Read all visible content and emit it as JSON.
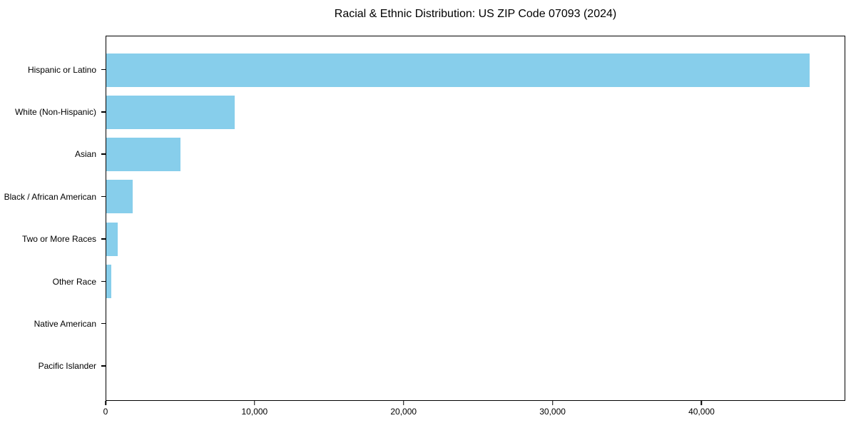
{
  "chart_data": {
    "type": "bar",
    "orientation": "horizontal",
    "title": "Racial & Ethnic Distribution: US ZIP Code 07093 (2024)",
    "categories": [
      "Hispanic or Latino",
      "White (Non-Hispanic)",
      "Asian",
      "Black / African American",
      "Two or More Races",
      "Other Race",
      "Native American",
      "Pacific Islander"
    ],
    "values": [
      47290,
      8620,
      4980,
      1770,
      770,
      340,
      0,
      0
    ],
    "xlabel": "",
    "ylabel": "",
    "xlim": [
      0,
      49650
    ],
    "x_ticks": [
      0,
      10000,
      20000,
      30000,
      40000
    ],
    "x_tick_labels": [
      "0",
      "10,000",
      "20,000",
      "30,000",
      "40,000"
    ],
    "bar_color": "#87CEEB",
    "axis_color": "#000000",
    "background_color": "#ffffff",
    "grid": false,
    "legend": null
  }
}
